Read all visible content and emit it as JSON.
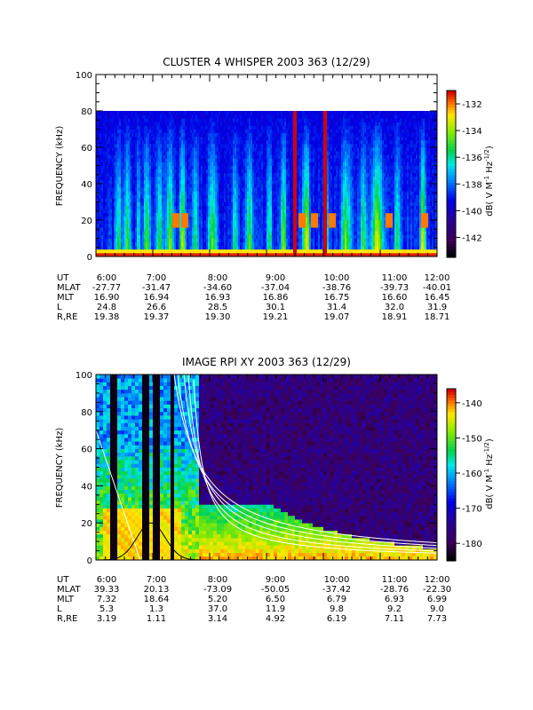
{
  "chart_data": [
    {
      "type": "heatmap",
      "title": "CLUSTER 4 WHISPER 2003 363 (12/29)",
      "ylabel": "FREQUENCY (kHz)",
      "ylim": [
        0,
        100
      ],
      "y_ticks": [
        "0",
        "20",
        "40",
        "60",
        "80",
        "100"
      ],
      "x_ticks": [
        "6:00",
        "7:00",
        "8:00",
        "9:00",
        "10:00",
        "11:00",
        "12:00"
      ],
      "colorbar": {
        "label": "dB( V M⁻¹ Hz⁻¹ᐟ²)",
        "label_parts": [
          "dB( V M",
          "-1",
          " Hz",
          "-1/2",
          ")"
        ],
        "ticks": [
          "-132",
          "-134",
          "-136",
          "-138",
          "-140",
          "-142"
        ],
        "range": [
          -143.5,
          -131
        ]
      },
      "data_cutoff_khz": 80,
      "bursts": [
        {
          "t": 6.4,
          "w": 0.05,
          "a": 0.55
        },
        {
          "t": 6.55,
          "w": 0.06,
          "a": 0.6
        },
        {
          "t": 6.75,
          "w": 0.04,
          "a": 0.5
        },
        {
          "t": 6.9,
          "w": 0.06,
          "a": 0.65
        },
        {
          "t": 7.12,
          "w": 0.05,
          "a": 0.6
        },
        {
          "t": 7.3,
          "w": 0.07,
          "a": 0.7
        },
        {
          "t": 7.52,
          "w": 0.05,
          "a": 0.9
        },
        {
          "t": 7.75,
          "w": 0.06,
          "a": 0.6
        },
        {
          "t": 8.05,
          "w": 0.08,
          "a": 0.7
        },
        {
          "t": 8.45,
          "w": 0.06,
          "a": 0.5
        },
        {
          "t": 8.7,
          "w": 0.07,
          "a": 0.6
        },
        {
          "t": 9.05,
          "w": 0.05,
          "a": 0.55
        },
        {
          "t": 9.3,
          "w": 0.05,
          "a": 0.7
        },
        {
          "t": 9.7,
          "w": 0.06,
          "a": 0.95
        },
        {
          "t": 10.05,
          "w": 0.04,
          "a": 0.7
        },
        {
          "t": 10.4,
          "w": 0.08,
          "a": 0.7
        },
        {
          "t": 10.7,
          "w": 0.06,
          "a": 0.6
        },
        {
          "t": 10.95,
          "w": 0.1,
          "a": 0.95
        },
        {
          "t": 11.3,
          "w": 0.06,
          "a": 0.5
        },
        {
          "t": 11.75,
          "w": 0.05,
          "a": 0.9
        }
      ],
      "red_columns_ut": [
        9.5,
        10.03
      ],
      "resonance_patches": [
        {
          "t": 7.4,
          "f": 20
        },
        {
          "t": 7.55,
          "f": 20
        },
        {
          "t": 9.62,
          "f": 20
        },
        {
          "t": 9.85,
          "f": 20
        },
        {
          "t": 10.15,
          "f": 20
        },
        {
          "t": 11.15,
          "f": 20
        },
        {
          "t": 11.78,
          "f": 20
        }
      ],
      "ephemeris": {
        "labels": [
          "UT",
          "MLAT",
          "MLT",
          "L",
          "R,RE"
        ],
        "rows": [
          [
            "6:00",
            "7:00",
            "8:00",
            "9:00",
            "10:00",
            "11:00",
            "12:00"
          ],
          [
            "-27.77",
            "-31.47",
            "-34.60",
            "-37.04",
            "-38.76",
            "-39.73",
            "-40.01"
          ],
          [
            "16.90",
            "16.94",
            "16.93",
            "16.86",
            "16.75",
            "16.60",
            "16.45"
          ],
          [
            "24.8",
            "26.6",
            "28.5",
            "30.1",
            "31.4",
            "32.0",
            "31.9"
          ],
          [
            "19.38",
            "19.37",
            "19.30",
            "19.21",
            "19.07",
            "18.91",
            "18.71"
          ]
        ]
      }
    },
    {
      "type": "heatmap",
      "title": "IMAGE RPI XY 2003 363 (12/29)",
      "ylabel": "FREQUENCY (kHz)",
      "ylim": [
        0,
        100
      ],
      "y_ticks": [
        "0",
        "20",
        "40",
        "60",
        "80",
        "100"
      ],
      "x_ticks": [
        "6:00",
        "7:00",
        "8:00",
        "9:00",
        "10:00",
        "11:00",
        "12:00"
      ],
      "colorbar": {
        "label": "dB( V M⁻¹ Hz⁻¹ᐟ²)",
        "label_parts": [
          "dB( V M",
          "-1",
          " Hz",
          "-1/2",
          ")"
        ],
        "ticks": [
          "-140",
          "-150",
          "-160",
          "-170",
          "-180"
        ],
        "range": [
          -185,
          -136
        ]
      },
      "dark_columns_ut": [
        6.3,
        6.88,
        7.08,
        7.35
      ],
      "cutoff_curves": [
        {
          "color": "white",
          "k": 66,
          "t0": 7.7
        },
        {
          "color": "white",
          "k": 90,
          "t0": 7.55
        },
        {
          "color": "white",
          "k": 120,
          "t0": 7.4
        },
        {
          "color": "white",
          "k": 155,
          "t0": 7.2
        },
        {
          "color": "white",
          "k": 190,
          "t0": 7.05
        }
      ],
      "perigee_curve": {
        "color": "black",
        "center_ut": 6.97,
        "peak_khz": 20
      },
      "ephemeris": {
        "labels": [
          "UT",
          "MLAT",
          "MLT",
          "L",
          "R,RE"
        ],
        "rows": [
          [
            "6:00",
            "7:00",
            "8:00",
            "9:00",
            "10:00",
            "11:00",
            "12:00"
          ],
          [
            "39.33",
            "20.13",
            "-73.09",
            "-50.05",
            "-37.42",
            "-28.76",
            "-22.30"
          ],
          [
            "7.32",
            "18.64",
            "5.20",
            "6.50",
            "6.79",
            "6.93",
            "6.99"
          ],
          [
            "5.3",
            "1.3",
            "37.0",
            "11.9",
            "9.8",
            "9.2",
            "9.0"
          ],
          [
            "3.19",
            "1.11",
            "3.14",
            "4.92",
            "6.19",
            "7.11",
            "7.73"
          ]
        ]
      }
    }
  ]
}
